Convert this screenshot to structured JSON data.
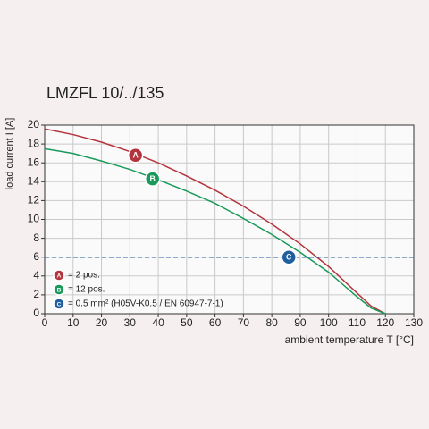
{
  "chart_data": {
    "type": "line",
    "title": "LMZFL 10/../135",
    "y_label": "load current I [A]",
    "x_label": "ambient temperature T [°C]",
    "xlim": [
      0,
      130
    ],
    "ylim": [
      0,
      20
    ],
    "xticks": [
      0,
      10,
      20,
      30,
      40,
      50,
      60,
      70,
      80,
      90,
      100,
      110,
      120,
      130
    ],
    "yticks": [
      0,
      2,
      4,
      6,
      8,
      10,
      12,
      14,
      16,
      18,
      20
    ],
    "grid": true,
    "series": [
      {
        "name": "= 2 pos.",
        "marker": "A",
        "color": "#b5333c",
        "dashed": false,
        "x": [
          0,
          10,
          20,
          30,
          40,
          50,
          60,
          70,
          80,
          90,
          100,
          110,
          115,
          120
        ],
        "values": [
          19.6,
          19.0,
          18.2,
          17.2,
          16.0,
          14.6,
          13.1,
          11.4,
          9.5,
          7.4,
          5.0,
          2.2,
          0.8,
          0
        ],
        "marker_at": [
          32,
          16.8
        ]
      },
      {
        "name": "= 12 pos.",
        "marker": "B",
        "color": "#1a9a5a",
        "dashed": false,
        "x": [
          0,
          10,
          20,
          30,
          40,
          50,
          60,
          70,
          80,
          90,
          100,
          110,
          115,
          120
        ],
        "values": [
          17.5,
          17.0,
          16.2,
          15.3,
          14.2,
          13.0,
          11.7,
          10.1,
          8.4,
          6.5,
          4.4,
          1.8,
          0.6,
          0
        ],
        "marker_at": [
          38,
          14.3
        ]
      },
      {
        "name": "= 0.5 mm² (H05V-K0.5 / EN 60947-7-1)",
        "marker": "C",
        "color": "#1f5fa0",
        "dashed": true,
        "x": [
          0,
          130
        ],
        "values": [
          6,
          6
        ],
        "marker_at": [
          86,
          6
        ]
      }
    ]
  }
}
